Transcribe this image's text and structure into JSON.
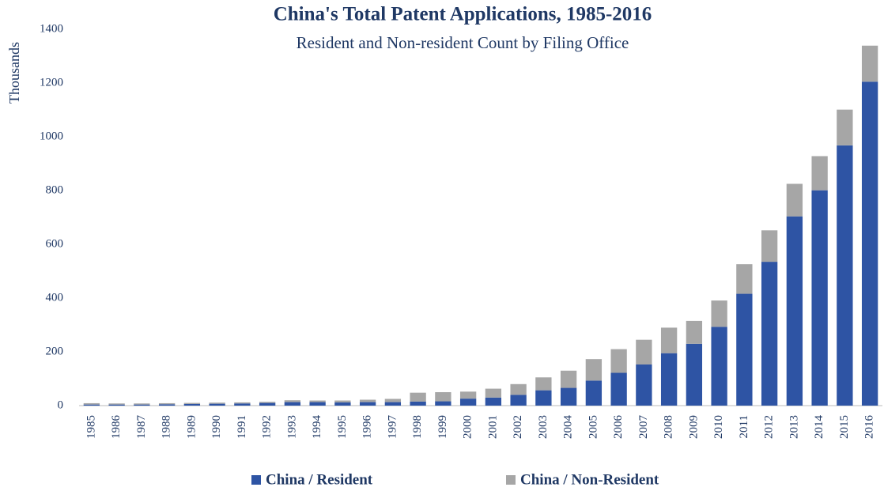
{
  "chart_data": {
    "type": "stacked_bar",
    "title": "China's Total Patent Applications, 1985-2016",
    "subtitle": "Resident and Non-resident Count by Filing Office",
    "y_label": "Thousands",
    "categories": [
      "1985",
      "1986",
      "1987",
      "1988",
      "1989",
      "1990",
      "1991",
      "1992",
      "1993",
      "1994",
      "1995",
      "1996",
      "1997",
      "1998",
      "1999",
      "2000",
      "2001",
      "2002",
      "2003",
      "2004",
      "2005",
      "2006",
      "2007",
      "2008",
      "2009",
      "2010",
      "2011",
      "2012",
      "2013",
      "2014",
      "2015",
      "2016"
    ],
    "series": [
      {
        "name": "China / Resident",
        "color": "#2e54a4",
        "values": [
          4,
          4,
          4,
          5,
          6,
          7,
          8,
          10,
          13,
          13,
          12,
          13,
          13,
          15,
          16,
          26,
          30,
          40,
          57,
          66,
          93,
          122,
          153,
          195,
          230,
          293,
          416,
          535,
          704,
          801,
          968,
          1205
        ]
      },
      {
        "name": "China / Non-Resident",
        "color": "#a6a6a6",
        "values": [
          5,
          4,
          4,
          4,
          4,
          4,
          4,
          4,
          7,
          6,
          7,
          9,
          12,
          33,
          34,
          26,
          33,
          40,
          48,
          64,
          80,
          88,
          92,
          95,
          85,
          98,
          110,
          117,
          121,
          127,
          133,
          134
        ]
      }
    ],
    "ylim": [
      0,
      1400
    ],
    "yticks": [
      0,
      200,
      400,
      600,
      800,
      1000,
      1200,
      1400
    ],
    "grid": false,
    "legend": "bottom"
  }
}
